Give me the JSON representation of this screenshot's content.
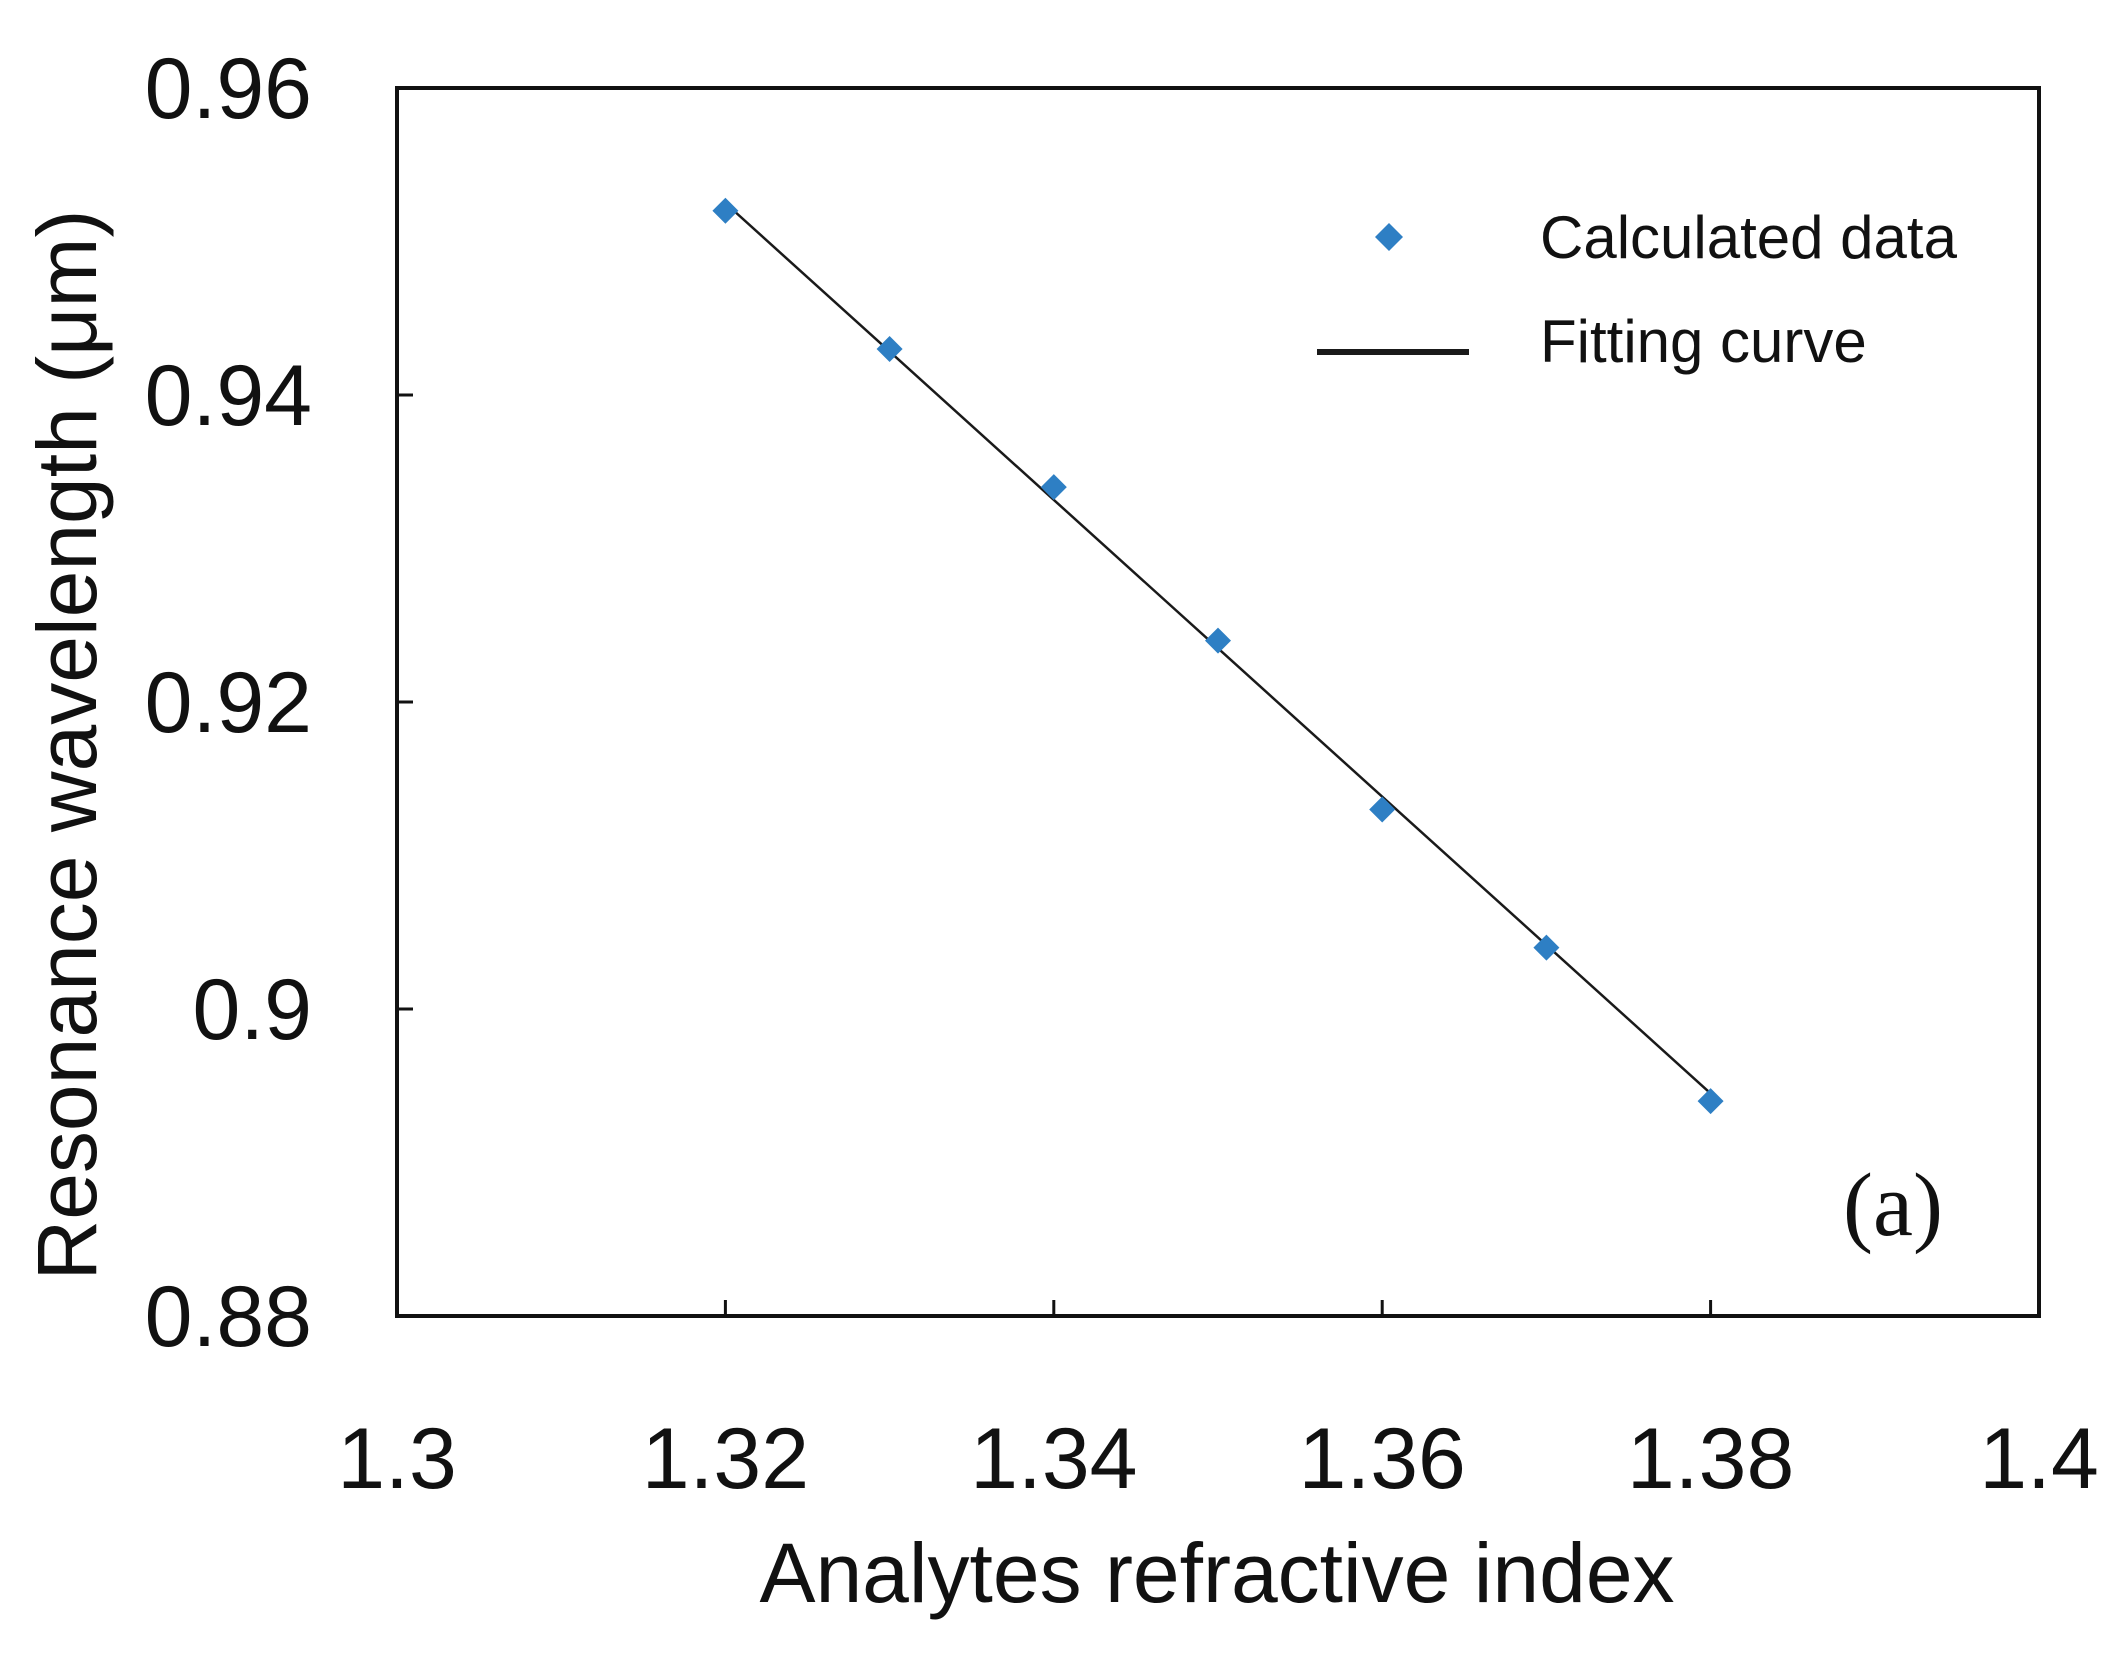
{
  "chart_data": {
    "type": "scatter",
    "title": "",
    "xlabel": "Analytes refractive index",
    "ylabel": "Resonance wavelength (μm)",
    "xlim": [
      1.3,
      1.4
    ],
    "ylim": [
      0.88,
      0.96
    ],
    "x_ticks": [
      "1.3",
      "1.32",
      "1.34",
      "1.36",
      "1.38",
      "1.4"
    ],
    "y_ticks": [
      "0.88",
      "0.9",
      "0.92",
      "0.94",
      "0.96"
    ],
    "grid": false,
    "legend_position": "top-right",
    "panel_label": "(a)",
    "series": [
      {
        "name": "Calculated data",
        "kind": "scatter",
        "marker": "diamond",
        "color": "#2E7FC4",
        "x": [
          1.32,
          1.33,
          1.34,
          1.35,
          1.36,
          1.37,
          1.38
        ],
        "y": [
          0.952,
          0.943,
          0.934,
          0.924,
          0.913,
          0.904,
          0.894
        ]
      },
      {
        "name": "Fitting curve",
        "kind": "line",
        "color": "#1a1a1a",
        "x": [
          1.32,
          1.38
        ],
        "y": [
          0.9525,
          0.8945
        ]
      }
    ]
  }
}
